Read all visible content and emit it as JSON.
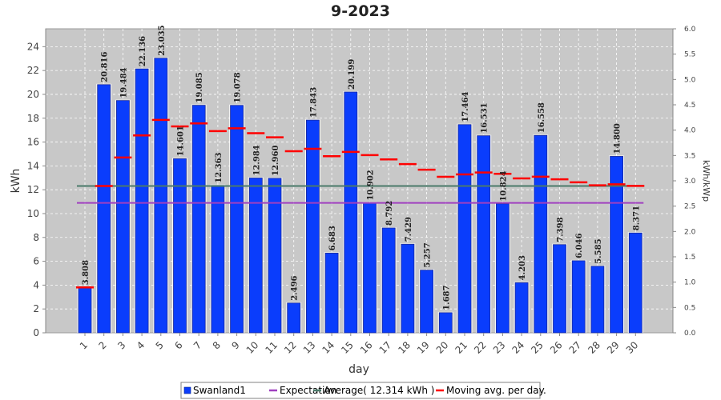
{
  "chart_data": {
    "type": "bar",
    "title": "9-2023",
    "xlabel": "day",
    "ylabel": "kWh",
    "y2label": "kWh/kWp",
    "ylim": [
      0,
      25.5
    ],
    "y2lim": [
      0,
      6.0
    ],
    "yticks": [
      "0",
      "2",
      "4",
      "6",
      "8",
      "10",
      "12",
      "14",
      "16",
      "18",
      "20",
      "22",
      "24"
    ],
    "y2ticks": [
      "0.0",
      "0.5",
      "1.0",
      "1.5",
      "2.0",
      "2.5",
      "3.0",
      "3.5",
      "4.0",
      "4.5",
      "5.0",
      "5.5",
      "6.0"
    ],
    "grid": true,
    "legend_position": "bottom",
    "categories": [
      "1",
      "2",
      "3",
      "4",
      "5",
      "6",
      "7",
      "8",
      "9",
      "10",
      "11",
      "12",
      "13",
      "14",
      "15",
      "16",
      "17",
      "18",
      "19",
      "20",
      "21",
      "22",
      "23",
      "24",
      "25",
      "26",
      "27",
      "28",
      "29",
      "30"
    ],
    "series": [
      {
        "name": "Swanland1",
        "kind": "bar",
        "color": "#0a3dfc",
        "values": [
          3.808,
          20.816,
          19.484,
          22.136,
          23.035,
          14.601,
          19.085,
          12.363,
          19.078,
          12.984,
          12.96,
          2.496,
          17.843,
          6.683,
          20.199,
          10.902,
          8.792,
          7.429,
          5.257,
          1.687,
          17.464,
          16.531,
          10.824,
          4.203,
          16.558,
          7.398,
          6.046,
          5.585,
          14.8,
          8.371
        ],
        "labels": [
          "3.808",
          "20.816",
          "19.484",
          "22.136",
          "23.035",
          "14.601",
          "19.085",
          "12.363",
          "19.078",
          "12.984",
          "12.960",
          "2.496",
          "17.843",
          "6.683",
          "20.199",
          "10.902",
          "8.792",
          "7.429",
          "5.257",
          "1.687",
          "17.464",
          "16.531",
          "10.824",
          "4.203",
          "16.558",
          "7.398",
          "6.046",
          "5.585",
          "14.800",
          "8.371"
        ]
      },
      {
        "name": "Expectation",
        "kind": "hline",
        "color": "#a040c0",
        "value": 10.9
      },
      {
        "name": "Average( 12.314 kWh )",
        "kind": "hline",
        "color": "#4a7a6a",
        "value": 12.314
      },
      {
        "name": "Moving avg. per day.",
        "kind": "marker",
        "color": "#ff0000",
        "values": [
          3.808,
          12.312,
          14.703,
          16.561,
          17.856,
          17.313,
          17.567,
          16.916,
          17.156,
          16.739,
          16.395,
          15.237,
          15.438,
          14.813,
          15.172,
          14.905,
          14.545,
          14.15,
          13.682,
          13.082,
          13.29,
          13.447,
          13.333,
          12.953,
          13.097,
          12.878,
          12.625,
          12.374,
          12.457,
          12.32
        ]
      }
    ]
  }
}
